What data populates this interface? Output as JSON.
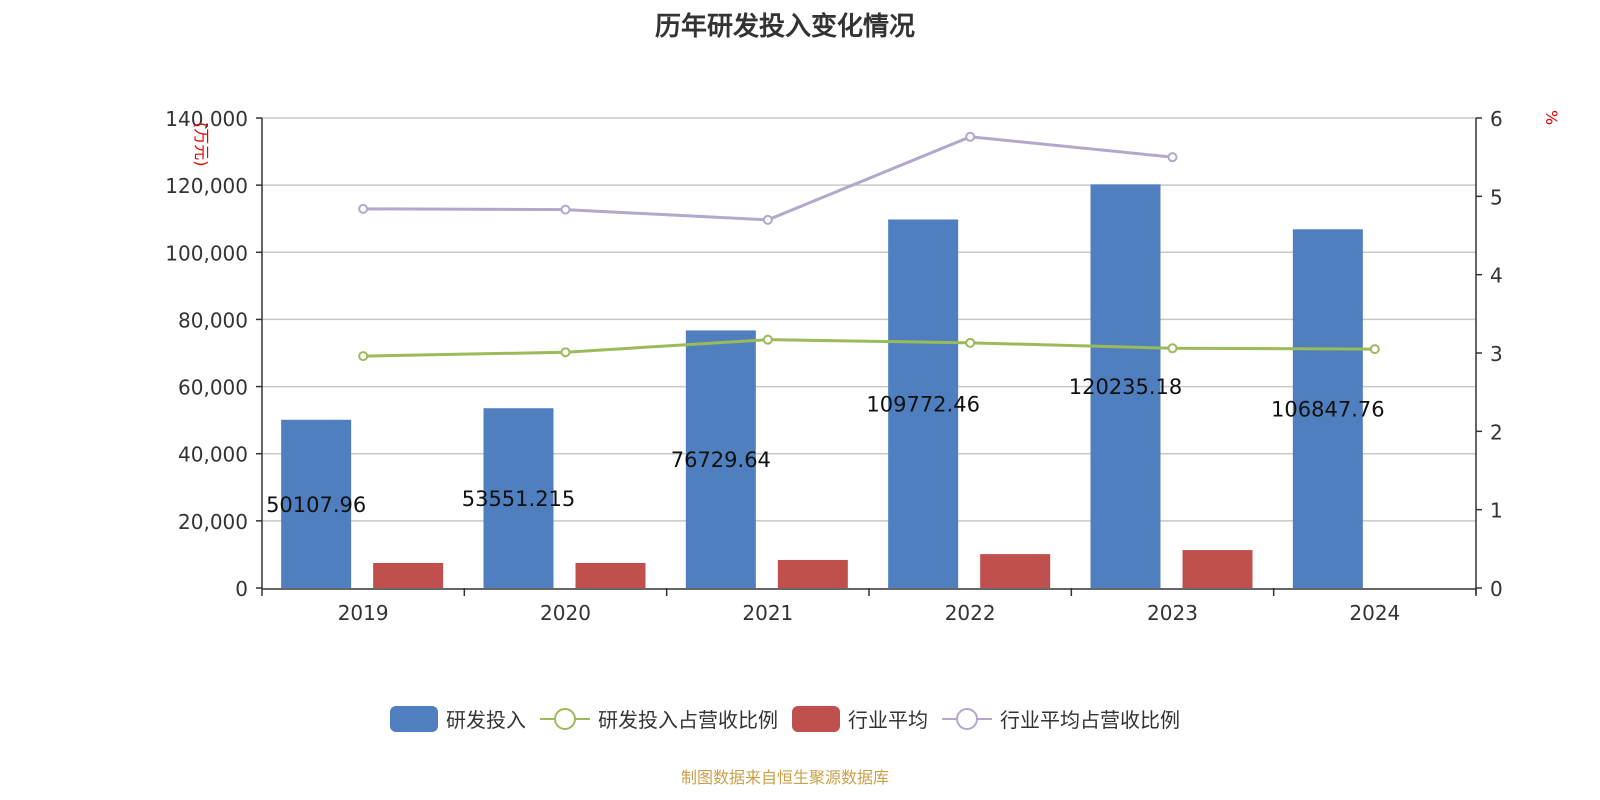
{
  "title": "历年研发投入变化情况",
  "source": "制图数据来自恒生聚源数据库",
  "chart_data": {
    "type": "bar",
    "title": "历年研发投入变化情况",
    "categories": [
      "2019",
      "2020",
      "2021",
      "2022",
      "2023",
      "2024"
    ],
    "y_left": {
      "label": "(万元)",
      "range": [
        0,
        140000
      ],
      "ticks": [
        "0",
        "20,000",
        "40,000",
        "60,000",
        "80,000",
        "100,000",
        "120,000",
        "140,000"
      ]
    },
    "y_right": {
      "label": "%",
      "range": [
        0,
        6
      ],
      "ticks": [
        "0",
        "1",
        "2",
        "3",
        "4",
        "5",
        "6"
      ]
    },
    "series": [
      {
        "name": "研发投入",
        "type": "bar",
        "axis": "left",
        "color": "#4f7fbe",
        "values": [
          50107.96,
          53551.215,
          76729.64,
          109772.46,
          120235.18,
          106847.76
        ],
        "labels": [
          "50107.96",
          "53551.215",
          "76729.64",
          "109772.46",
          "120235.18",
          "106847.76"
        ]
      },
      {
        "name": "研发投入占营收比例",
        "type": "line",
        "axis": "right",
        "color": "#9bbb59",
        "values": [
          2.96,
          3.01,
          3.17,
          3.13,
          3.06,
          3.05
        ]
      },
      {
        "name": "行业平均",
        "type": "bar",
        "axis": "left",
        "color": "#c0504d",
        "values": [
          7450,
          7450,
          8350,
          10100,
          11300,
          null
        ]
      },
      {
        "name": "行业平均占营收比例",
        "type": "line",
        "axis": "right",
        "color": "#b3a7cc",
        "values": [
          4.84,
          4.83,
          4.7,
          5.76,
          5.5,
          null
        ]
      }
    ],
    "grid": true,
    "legend_position": "bottom"
  }
}
